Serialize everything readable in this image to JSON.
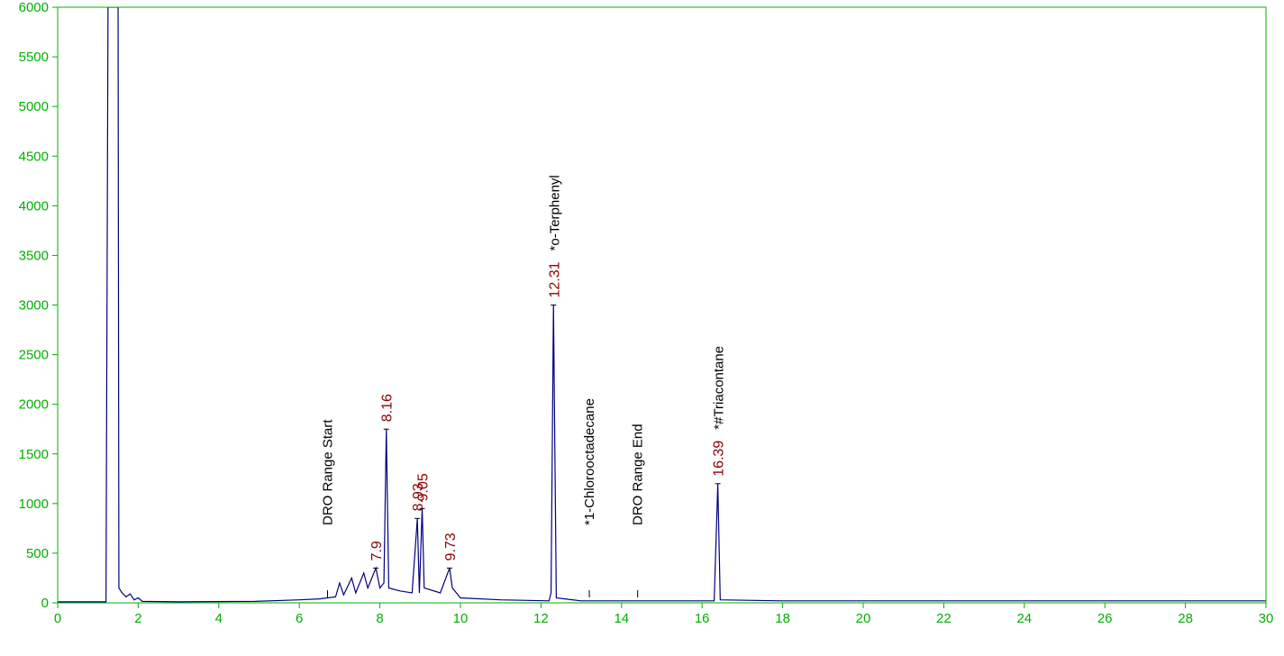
{
  "chart_data": {
    "type": "line",
    "x": [
      0,
      1.2,
      1.25,
      1.5,
      1.52,
      1.6,
      1.7,
      1.8,
      1.9,
      2.0,
      2.1,
      3,
      4.9,
      6,
      6.5,
      6.9,
      7.0,
      7.1,
      7.3,
      7.4,
      7.6,
      7.7,
      7.9,
      8.0,
      8.1,
      8.16,
      8.22,
      8.5,
      8.8,
      8.93,
      8.98,
      9.05,
      9.1,
      9.5,
      9.73,
      9.8,
      10,
      11,
      12.2,
      12.25,
      12.31,
      12.38,
      13,
      16.3,
      16.39,
      16.45,
      18,
      30
    ],
    "series": [
      {
        "color": "#000080",
        "values": [
          10,
          10,
          6000,
          6000,
          150,
          100,
          60,
          90,
          30,
          50,
          15,
          10,
          15,
          30,
          40,
          60,
          200,
          80,
          250,
          100,
          300,
          150,
          350,
          150,
          200,
          1750,
          150,
          120,
          100,
          850,
          100,
          950,
          150,
          100,
          350,
          150,
          50,
          30,
          20,
          100,
          3000,
          50,
          20,
          20,
          1200,
          30,
          20,
          20
        ]
      }
    ],
    "peaks": [
      {
        "x": 7.9,
        "y": 350
      },
      {
        "x": 8.16,
        "y": 1750
      },
      {
        "x": 8.93,
        "y": 850
      },
      {
        "x": 9.05,
        "y": 950
      },
      {
        "x": 9.73,
        "y": 350
      },
      {
        "x": 12.31,
        "y": 3000,
        "name": "*o-Terphenyl"
      },
      {
        "x": 16.39,
        "y": 1200,
        "name": "*#Triacontane"
      }
    ],
    "events": [
      {
        "x": 6.7,
        "name": "DRO Range Start"
      },
      {
        "x": 13.2,
        "name": "*1-Chlorooctadecane"
      },
      {
        "x": 14.4,
        "name": "DRO Range End"
      }
    ],
    "xlim": [
      0,
      30
    ],
    "xticks": [
      0,
      2,
      4,
      6,
      8,
      10,
      12,
      14,
      16,
      18,
      20,
      22,
      24,
      26,
      28,
      30
    ],
    "ylim": [
      0,
      6000
    ],
    "yticks": [
      0,
      500,
      1000,
      1500,
      2000,
      2500,
      3000,
      3500,
      4000,
      4500,
      5000,
      5500,
      6000
    ]
  }
}
